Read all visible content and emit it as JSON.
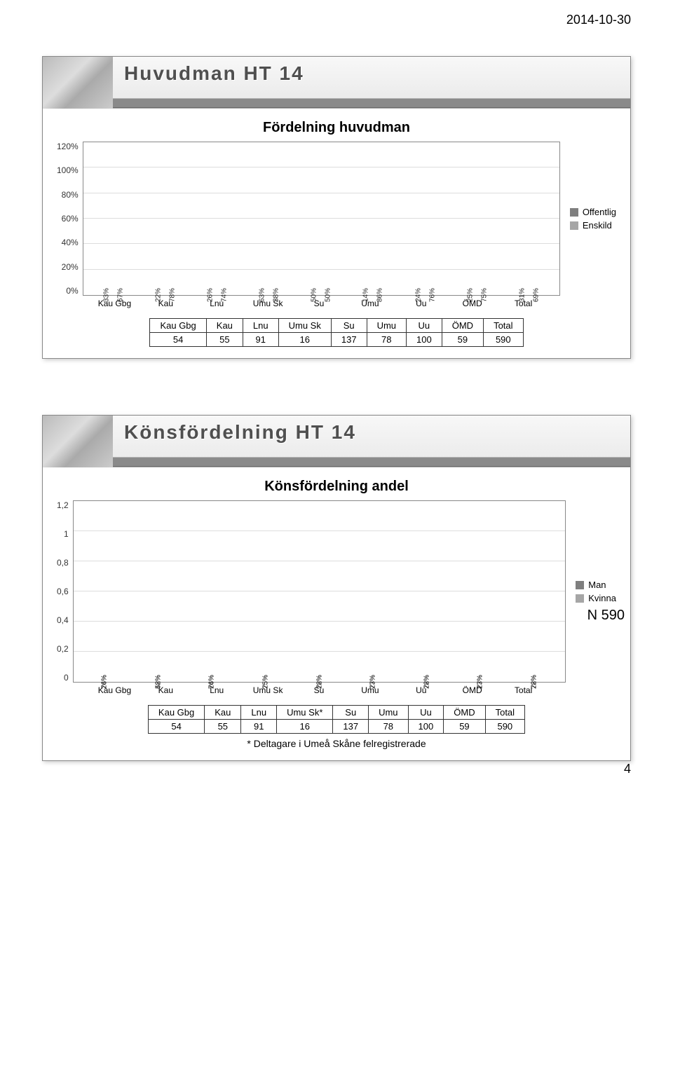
{
  "page": {
    "date": "2014-10-30",
    "number": "4"
  },
  "slide1": {
    "title": "Huvudman HT 14",
    "chart": {
      "title": "Fördelning huvudman",
      "type": "grouped-bar",
      "ylabels": [
        "120%",
        "100%",
        "80%",
        "60%",
        "40%",
        "20%",
        "0%"
      ],
      "ymax": 120,
      "categories": [
        "Kau Gbg",
        "Kau",
        "Lnu",
        "Umu Sk",
        "Su",
        "Umu",
        "Uu",
        "ÖMD",
        "Total"
      ],
      "series": [
        {
          "name": "Enskild",
          "color": "#a6a6a6",
          "values": [
            33,
            22,
            26,
            63,
            50,
            14,
            24,
            25,
            31
          ],
          "labels": [
            "33%",
            "22%",
            "26%",
            "63%",
            "50%",
            "14%",
            "24%",
            "25%",
            "31%"
          ]
        },
        {
          "name": "Offentlig",
          "color": "#7f7f7f",
          "values": [
            67,
            78,
            74,
            38,
            50,
            86,
            76,
            75,
            69
          ],
          "labels": [
            "67%",
            "78%",
            "74%",
            "38%",
            "50%",
            "86%",
            "76%",
            "75%",
            "69%"
          ]
        }
      ],
      "legend": [
        {
          "label": "Offentlig",
          "color": "#7f7f7f"
        },
        {
          "label": "Enskild",
          "color": "#a6a6a6"
        }
      ]
    },
    "table": {
      "headers": [
        "Kau Gbg",
        "Kau",
        "Lnu",
        "Umu Sk",
        "Su",
        "Umu",
        "Uu",
        "ÖMD",
        "Total"
      ],
      "values": [
        "54",
        "55",
        "91",
        "16",
        "137",
        "78",
        "100",
        "59",
        "590"
      ]
    }
  },
  "slide2": {
    "title": "Könsfördelning HT 14",
    "n_label": "N 590",
    "chart": {
      "title": "Könsfördelning andel",
      "type": "stacked-bar",
      "ylabels": [
        "1,2",
        "1",
        "0,8",
        "0,6",
        "0,4",
        "0,2",
        "0"
      ],
      "ymax": 1.2,
      "categories": [
        "Kau Gbg",
        "Kau",
        "Lnu",
        "Umu Sk",
        "Su",
        "Umu",
        "Uu",
        "ÖMD",
        "Total"
      ],
      "series": [
        {
          "name": "Kvinna",
          "color": "#a6a6a6",
          "values": [
            0.74,
            0.58,
            0.76,
            0.75,
            0.72,
            0.77,
            0.72,
            0.73,
            0.72
          ],
          "labels": [
            "74%",
            "58%",
            "76%",
            "75%",
            "72%",
            "77%",
            "72%",
            "73%",
            "72%"
          ]
        },
        {
          "name": "Man",
          "color": "#7f7f7f",
          "values": [
            0.26,
            0.42,
            0.24,
            0.25,
            0.28,
            0.23,
            0.28,
            0.27,
            0.28
          ],
          "labels": [
            "26%",
            "42%",
            "24%",
            "25%",
            "28%",
            "23%",
            "28%",
            "27%",
            "28%"
          ]
        }
      ],
      "legend": [
        {
          "label": "Man",
          "color": "#7f7f7f"
        },
        {
          "label": "Kvinna",
          "color": "#a6a6a6"
        }
      ]
    },
    "table": {
      "headers": [
        "Kau Gbg",
        "Kau",
        "Lnu",
        "Umu Sk*",
        "Su",
        "Umu",
        "Uu",
        "ÖMD",
        "Total"
      ],
      "values": [
        "54",
        "55",
        "91",
        "16",
        "137",
        "78",
        "100",
        "59",
        "590"
      ]
    },
    "footnote": "* Deltagare i Umeå Skåne felregistrerade"
  }
}
